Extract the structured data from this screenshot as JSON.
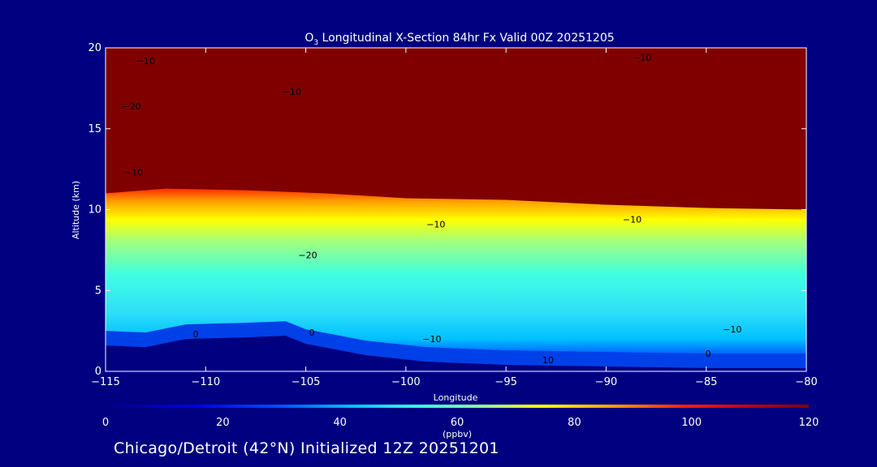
{
  "chart_data": {
    "type": "heatmap",
    "title_prefix": "O",
    "title_sub": "3",
    "title_rest": " Longitudinal X-Section 84hr  Fx Valid 00Z 20251205",
    "xlabel": "Longitude",
    "ylabel": "Altitude (km)",
    "xlim": [
      -115,
      -80
    ],
    "ylim": [
      0,
      20
    ],
    "x_ticks": [
      -115,
      -110,
      -105,
      -100,
      -95,
      -90,
      -85,
      -80
    ],
    "x_tick_labels": [
      "−115",
      "−110",
      "−105",
      "−100",
      "−95",
      "−90",
      "−85",
      "−80"
    ],
    "y_ticks": [
      0,
      5,
      10,
      15,
      20
    ],
    "y_tick_labels": [
      "0",
      "5",
      "10",
      "15",
      "20"
    ],
    "colorbar": {
      "min": 0,
      "max": 120,
      "ticks": [
        0,
        20,
        40,
        60,
        80,
        100,
        120
      ],
      "tick_labels": [
        "0",
        "20",
        "40",
        "60",
        "80",
        "100",
        "120"
      ],
      "label": "(ppbv)"
    },
    "stratosphere_base_km": [
      [
        -115,
        11.0
      ],
      [
        -112,
        11.3
      ],
      [
        -108,
        11.2
      ],
      [
        -104,
        11.0
      ],
      [
        -100,
        10.7
      ],
      [
        -95,
        10.6
      ],
      [
        -90,
        10.3
      ],
      [
        -85,
        10.1
      ],
      [
        -80,
        10.0
      ]
    ],
    "terrain_km": [
      [
        -115,
        1.6
      ],
      [
        -113,
        1.5
      ],
      [
        -111,
        2.0
      ],
      [
        -108,
        2.1
      ],
      [
        -106,
        2.2
      ],
      [
        -105,
        1.7
      ],
      [
        -102,
        1.0
      ],
      [
        -99,
        0.6
      ],
      [
        -95,
        0.4
      ],
      [
        -90,
        0.3
      ],
      [
        -85,
        0.2
      ],
      [
        -80,
        0.2
      ]
    ],
    "contour_labels": [
      {
        "text": "−10",
        "x": -113.0,
        "y": 19.0
      },
      {
        "text": "−20",
        "x": -113.7,
        "y": 16.2
      },
      {
        "text": "−10",
        "x": -113.6,
        "y": 12.1
      },
      {
        "text": "−10",
        "x": -105.7,
        "y": 17.1
      },
      {
        "text": "−10",
        "x": -88.2,
        "y": 19.2
      },
      {
        "text": "−10",
        "x": -98.5,
        "y": 8.9
      },
      {
        "text": "−10",
        "x": -88.7,
        "y": 9.2
      },
      {
        "text": "−20",
        "x": -104.9,
        "y": 7.0
      },
      {
        "text": "−10",
        "x": -98.7,
        "y": 1.8
      },
      {
        "text": "−10",
        "x": -83.7,
        "y": 2.4
      },
      {
        "text": "0",
        "x": -110.5,
        "y": 2.1
      },
      {
        "text": "0",
        "x": -104.7,
        "y": 2.2
      },
      {
        "text": "0",
        "x": -84.9,
        "y": 0.9
      },
      {
        "text": "10",
        "x": -92.9,
        "y": 0.5
      }
    ]
  },
  "footer_text": "Chicago/Detroit (42°N) Initialized 12Z 20251201"
}
